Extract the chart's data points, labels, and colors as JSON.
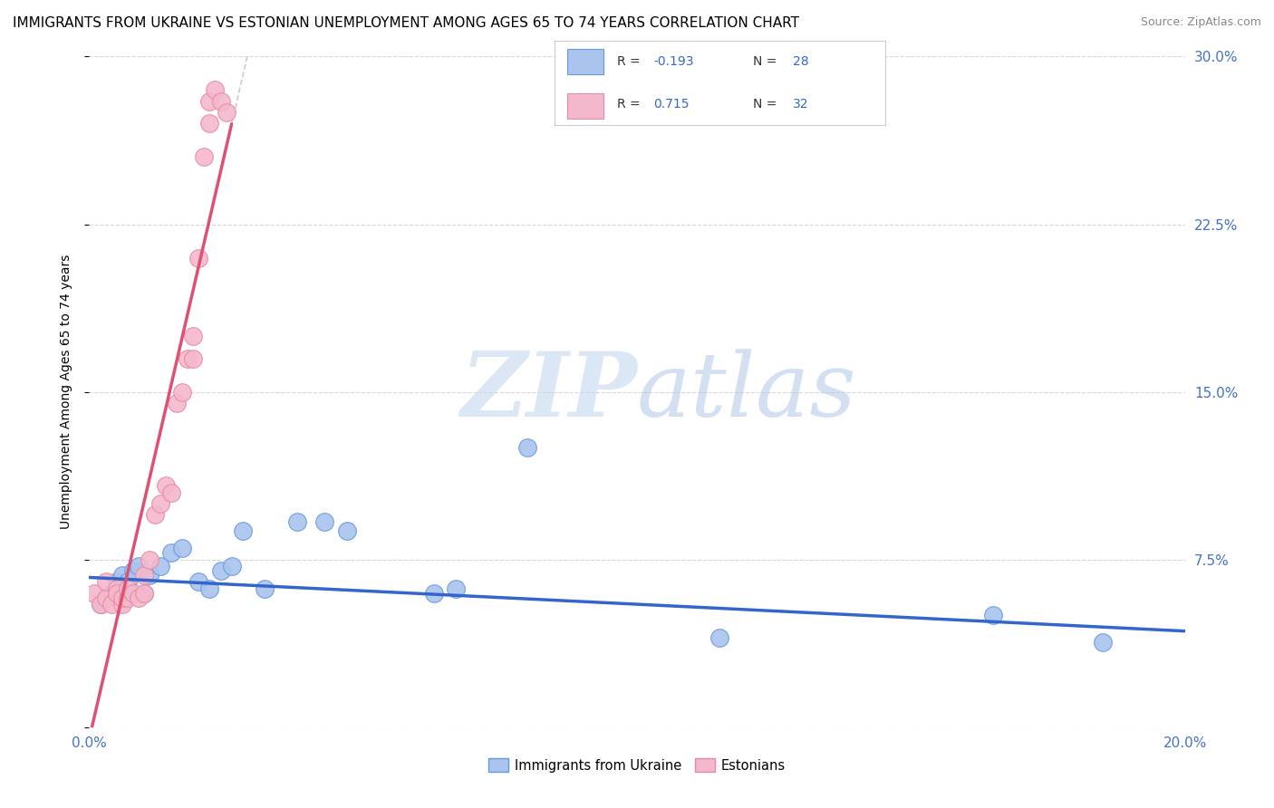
{
  "title": "IMMIGRANTS FROM UKRAINE VS ESTONIAN UNEMPLOYMENT AMONG AGES 65 TO 74 YEARS CORRELATION CHART",
  "source": "Source: ZipAtlas.com",
  "ylabel": "Unemployment Among Ages 65 to 74 years",
  "xlim": [
    0.0,
    0.2
  ],
  "ylim": [
    0.0,
    0.3
  ],
  "legend_r_blue": "R = -0.193",
  "legend_n_blue": "N = 28",
  "legend_r_pink": "R =  0.715",
  "legend_n_pink": "N = 32",
  "legend_series_blue": "Immigrants from Ukraine",
  "legend_series_pink": "Estonians",
  "blue_scatter_x": [
    0.002,
    0.003,
    0.004,
    0.005,
    0.006,
    0.007,
    0.008,
    0.009,
    0.01,
    0.011,
    0.013,
    0.015,
    0.017,
    0.02,
    0.022,
    0.024,
    0.026,
    0.028,
    0.032,
    0.038,
    0.043,
    0.047,
    0.063,
    0.067,
    0.08,
    0.115,
    0.165,
    0.185
  ],
  "blue_scatter_y": [
    0.055,
    0.058,
    0.06,
    0.065,
    0.068,
    0.065,
    0.07,
    0.072,
    0.06,
    0.068,
    0.072,
    0.078,
    0.08,
    0.065,
    0.062,
    0.07,
    0.072,
    0.088,
    0.062,
    0.092,
    0.092,
    0.088,
    0.06,
    0.062,
    0.125,
    0.04,
    0.05,
    0.038
  ],
  "pink_scatter_x": [
    0.001,
    0.002,
    0.003,
    0.003,
    0.004,
    0.005,
    0.005,
    0.006,
    0.006,
    0.007,
    0.007,
    0.008,
    0.009,
    0.01,
    0.01,
    0.011,
    0.012,
    0.013,
    0.014,
    0.015,
    0.016,
    0.017,
    0.018,
    0.019,
    0.019,
    0.02,
    0.021,
    0.022,
    0.022,
    0.023,
    0.024,
    0.025
  ],
  "pink_scatter_y": [
    0.06,
    0.055,
    0.058,
    0.065,
    0.055,
    0.062,
    0.06,
    0.055,
    0.058,
    0.058,
    0.062,
    0.06,
    0.058,
    0.06,
    0.068,
    0.075,
    0.095,
    0.1,
    0.108,
    0.105,
    0.145,
    0.15,
    0.165,
    0.175,
    0.165,
    0.21,
    0.255,
    0.27,
    0.28,
    0.285,
    0.28,
    0.275
  ],
  "blue_line_color": "#3366cc",
  "pink_line_color": "#e05070",
  "blue_scatter_facecolor": "#aac4ee",
  "pink_scatter_facecolor": "#f4b8cc",
  "blue_scatter_edgecolor": "#6699dd",
  "pink_scatter_edgecolor": "#e88aa0",
  "watermark_color": "#d0e4f7",
  "grid_color": "#cccccc",
  "background_color": "#ffffff",
  "title_fontsize": 11,
  "axis_label_fontsize": 10,
  "tick_fontsize": 11,
  "right_tick_color": "#4472c4",
  "bottom_tick_color": "#4472c4"
}
